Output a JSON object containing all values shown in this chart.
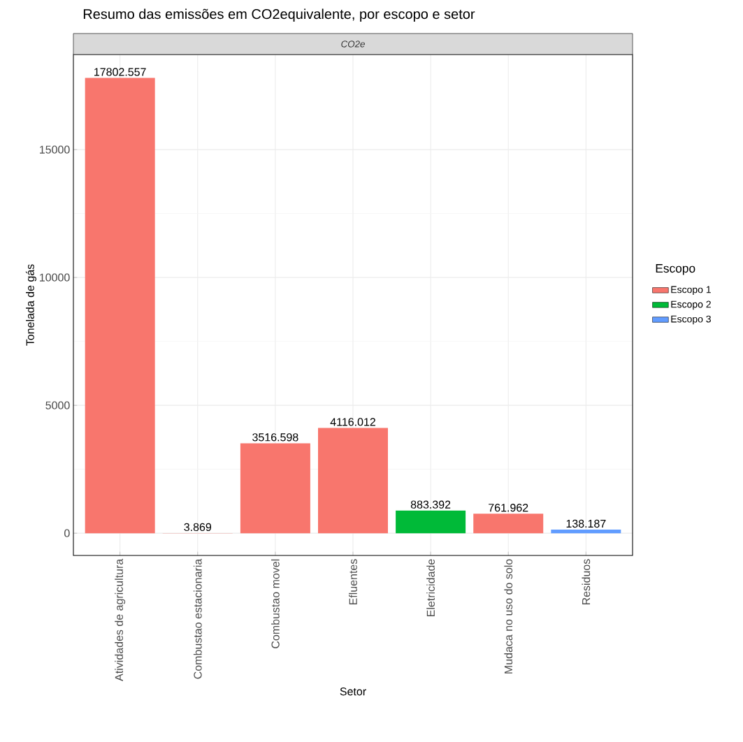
{
  "chart_data": {
    "type": "bar",
    "title": "Resumo das emissões em CO2equivalente, por escopo e setor",
    "subtitle": "CO2e",
    "xlabel": "Setor",
    "ylabel": "Tonelada de gás",
    "legend_title": "Escopo",
    "categories": [
      "Atividades de agricultura",
      "Combustao estacionaria",
      "Combustao movel",
      "Efluentes",
      "Eletricidade",
      "Mudaca no uso do solo",
      "Residuos"
    ],
    "series": [
      {
        "name": "Escopo 1",
        "color": "#f8766d",
        "values": [
          17802.557,
          3.869,
          3516.598,
          4116.012,
          null,
          761.962,
          null
        ],
        "value_labels": [
          "17802.557",
          "3.869",
          "3516.598",
          "4116.012",
          null,
          "761.962",
          null
        ]
      },
      {
        "name": "Escopo 2",
        "color": "#00ba38",
        "values": [
          null,
          null,
          null,
          null,
          883.392,
          null,
          null
        ],
        "value_labels": [
          null,
          null,
          null,
          null,
          "883.392",
          null,
          null
        ]
      },
      {
        "name": "Escopo 3",
        "color": "#619cff",
        "values": [
          null,
          null,
          null,
          null,
          null,
          null,
          138.187
        ],
        "value_labels": [
          null,
          null,
          null,
          null,
          null,
          null,
          "138.187"
        ]
      }
    ],
    "ylim": [
      -870,
      18720
    ],
    "yticks": [
      0,
      5000,
      10000,
      15000
    ],
    "grid": true,
    "legend": "right"
  }
}
